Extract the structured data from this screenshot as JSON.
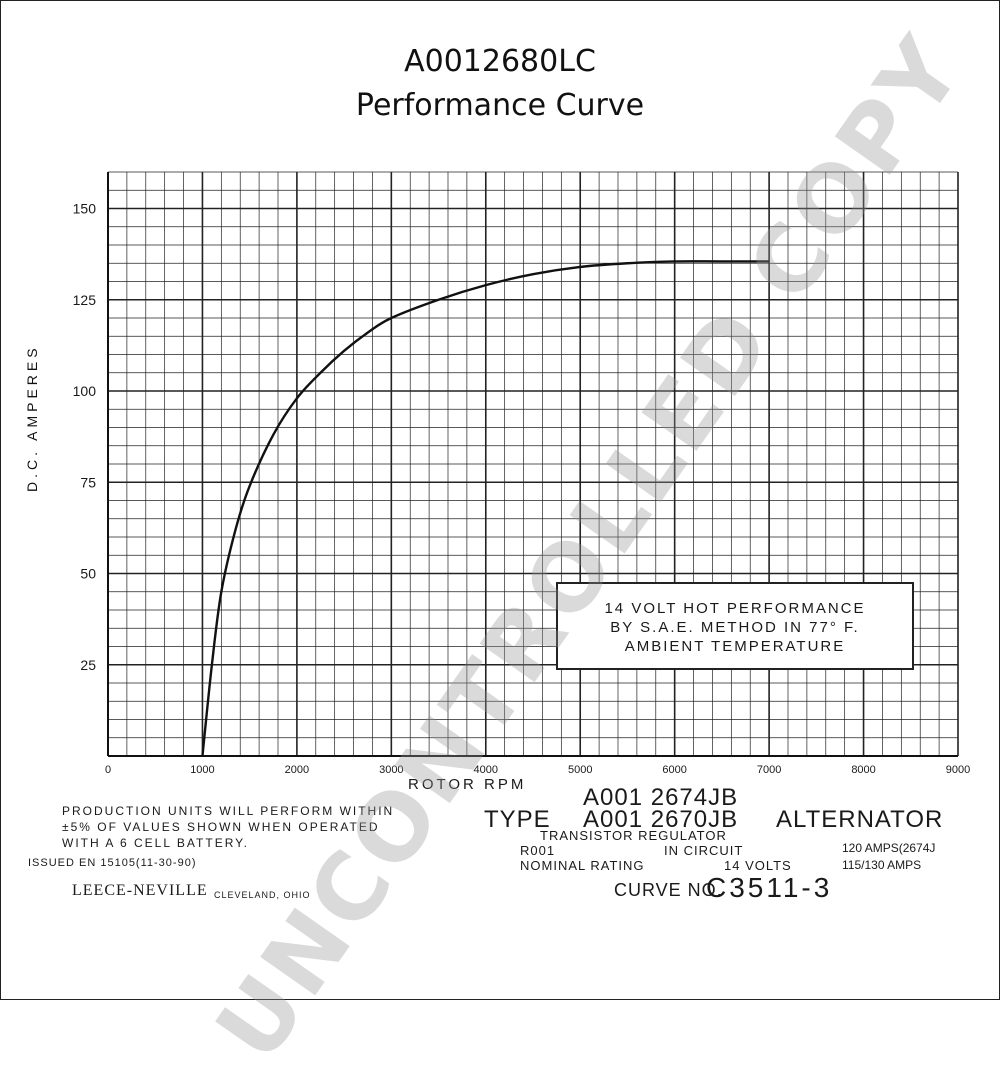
{
  "header": {
    "title": "A0012680LC",
    "subtitle": "Performance Curve"
  },
  "chart_data": {
    "type": "line",
    "xlabel": "ROTOR RPM",
    "ylabel": "D.C. AMPERES",
    "xlim": [
      0,
      9000
    ],
    "ylim": [
      0,
      160
    ],
    "xticks": [
      0,
      1000,
      2000,
      3000,
      4000,
      5000,
      6000,
      7000,
      8000,
      9000
    ],
    "xtick_labels": [
      "0",
      "1000",
      "2000",
      "3000",
      "4000",
      "5000",
      "6000",
      "7000",
      "8000",
      "9000"
    ],
    "yticks": [
      25,
      50,
      75,
      100,
      125,
      150
    ],
    "ytick_labels": [
      "25",
      "50",
      "75",
      "100",
      "125",
      "150"
    ],
    "grid": true,
    "series": [
      {
        "x": [
          1000,
          1100,
          1200,
          1350,
          1500,
          1750,
          2000,
          2250,
          2500,
          2750,
          3000,
          3500,
          4000,
          4500,
          5000,
          5500,
          6000,
          6500,
          7000
        ],
        "y": [
          0,
          25,
          45,
          62,
          74,
          88,
          98,
          105,
          111,
          116,
          120,
          125,
          129,
          132,
          134,
          135,
          135.5,
          135.5,
          135.5
        ]
      }
    ]
  },
  "performance_box": {
    "line1": "14 VOLT HOT PERFORMANCE",
    "line2": "BY S.A.E. METHOD IN 77° F.",
    "line3": "AMBIENT TEMPERATURE"
  },
  "notes": {
    "production_line1": "PRODUCTION UNITS WILL PERFORM WITHIN",
    "production_line2": "±5% OF VALUES SHOWN WHEN OPERATED",
    "production_line3": "WITH A 6 CELL BATTERY.",
    "issued": "ISSUED EN 15105(11-30-90)",
    "brand": "LEECE-NEVILLE",
    "brand_location": "CLEVELAND, OHIO"
  },
  "spec": {
    "type_label": "TYPE",
    "model1": "A001 2674JB",
    "model2": "A001 2670JB",
    "alternator": "ALTERNATOR",
    "regulator": "TRANSISTOR REGULATOR",
    "r001": "R001",
    "in_circuit": "IN CIRCUIT",
    "nominal_label": "NOMINAL RATING",
    "volts": "14 VOLTS",
    "amps1": "120 AMPS(2674J",
    "amps2": "115/130 AMPS",
    "curve_label": "CURVE NO.",
    "curve_no": "C3511-3"
  },
  "watermark": "UNCONTROLLED COPY"
}
